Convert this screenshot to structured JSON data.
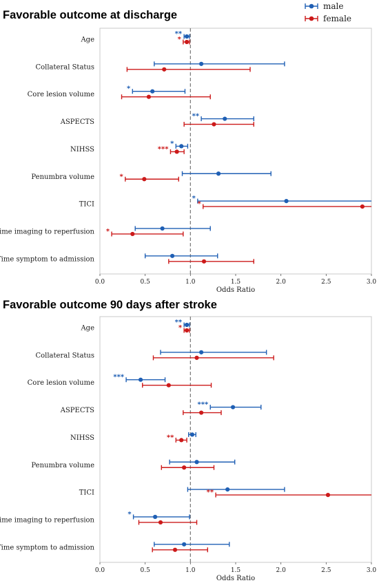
{
  "legend": {
    "male_label": "male",
    "female_label": "female"
  },
  "colors": {
    "male": "#1f5fb4",
    "female": "#cc1a1a",
    "reference_line": "#777777",
    "frame": "#c8c8c8"
  },
  "chart_data": [
    {
      "type": "forest",
      "title": "Favorable outcome at discharge",
      "xlabel": "Odds Ratio",
      "xlim": [
        0.0,
        3.0
      ],
      "xticks": [
        "0.0",
        "0.5",
        "1.0",
        "1.5",
        "2.0",
        "2.5",
        "3.0"
      ],
      "reference_x": 1.0,
      "grid": false,
      "categories": [
        "Age",
        "Collateral Status",
        "Core lesion volume",
        "ASPECTS",
        "NIHSS",
        "Penumbra volume",
        "TICI",
        "Time imaging to reperfusion",
        "Time symptom to admission"
      ],
      "series": [
        {
          "name": "male",
          "or": [
            0.96,
            1.12,
            0.58,
            1.38,
            0.9,
            1.31,
            2.06,
            0.69,
            0.8
          ],
          "ci_low": [
            0.93,
            0.6,
            0.36,
            1.12,
            0.84,
            0.91,
            1.08,
            0.39,
            0.5
          ],
          "ci_high": [
            0.99,
            2.04,
            0.94,
            1.7,
            0.97,
            1.89,
            3.0,
            1.22,
            1.3
          ],
          "sig": [
            "**",
            "",
            "*",
            "**",
            "*",
            "",
            "*",
            "",
            ""
          ]
        },
        {
          "name": "female",
          "or": [
            0.96,
            0.71,
            0.54,
            1.26,
            0.85,
            0.49,
            2.9,
            0.36,
            1.15
          ],
          "ci_low": [
            0.92,
            0.3,
            0.24,
            0.93,
            0.78,
            0.28,
            1.14,
            0.13,
            0.76
          ],
          "ci_high": [
            0.99,
            1.66,
            1.22,
            1.7,
            0.93,
            0.87,
            3.0,
            0.92,
            1.7
          ],
          "sig": [
            "*",
            "",
            "",
            "",
            "***",
            "*",
            "*",
            "*",
            ""
          ]
        }
      ]
    },
    {
      "type": "forest",
      "title": "Favorable outcome 90 days after stroke",
      "xlabel": "Odds Ratio",
      "xlim": [
        0.0,
        3.0
      ],
      "xticks": [
        "0.0",
        "0.5",
        "1.0",
        "1.5",
        "2.0",
        "2.5",
        "3.0"
      ],
      "reference_x": 1.0,
      "grid": false,
      "categories": [
        "Age",
        "Collateral Status",
        "Core lesion volume",
        "ASPECTS",
        "NIHSS",
        "Penumbra volume",
        "TICI",
        "Time imaging to reperfusion",
        "Time symptom to admission"
      ],
      "series": [
        {
          "name": "male",
          "or": [
            0.96,
            1.12,
            0.45,
            1.47,
            1.02,
            1.07,
            1.41,
            0.61,
            0.93
          ],
          "ci_low": [
            0.93,
            0.67,
            0.29,
            1.22,
            0.98,
            0.77,
            0.97,
            0.37,
            0.6
          ],
          "ci_high": [
            0.99,
            1.84,
            0.72,
            1.78,
            1.06,
            1.49,
            2.04,
            0.99,
            1.43
          ],
          "sig": [
            "**",
            "",
            "***",
            "***",
            "",
            "",
            "",
            "*",
            ""
          ]
        },
        {
          "name": "female",
          "or": [
            0.96,
            1.07,
            0.76,
            1.12,
            0.9,
            0.93,
            2.52,
            0.67,
            0.83
          ],
          "ci_low": [
            0.93,
            0.59,
            0.47,
            0.92,
            0.84,
            0.68,
            1.28,
            0.43,
            0.58
          ],
          "ci_high": [
            0.99,
            1.92,
            1.23,
            1.34,
            0.96,
            1.26,
            3.0,
            1.07,
            1.19
          ],
          "sig": [
            "*",
            "",
            "",
            "",
            "**",
            "",
            "**",
            "",
            ""
          ]
        }
      ]
    }
  ]
}
